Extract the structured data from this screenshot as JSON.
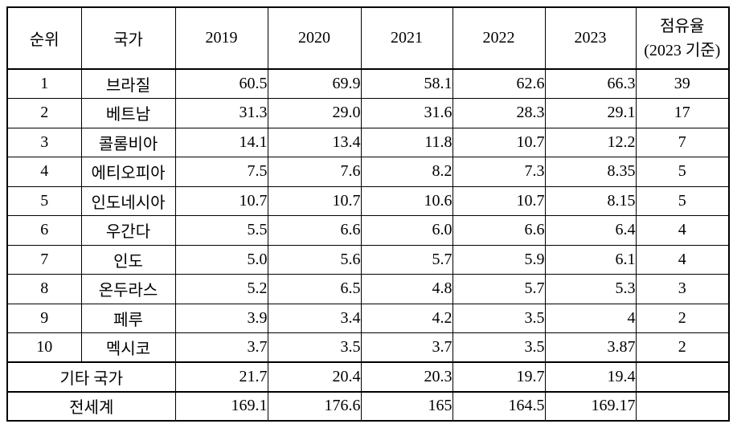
{
  "table": {
    "headers": {
      "rank": "순위",
      "country": "국가",
      "years": [
        "2019",
        "2020",
        "2021",
        "2022",
        "2023"
      ],
      "share_line1": "점유율",
      "share_line2": "(2023 기준)"
    },
    "rows": [
      {
        "rank": "1",
        "country": "브라질",
        "values": [
          "60.5",
          "69.9",
          "58.1",
          "62.6",
          "66.3"
        ],
        "share": "39"
      },
      {
        "rank": "2",
        "country": "베트남",
        "values": [
          "31.3",
          "29.0",
          "31.6",
          "28.3",
          "29.1"
        ],
        "share": "17"
      },
      {
        "rank": "3",
        "country": "콜롬비아",
        "values": [
          "14.1",
          "13.4",
          "11.8",
          "10.7",
          "12.2"
        ],
        "share": "7"
      },
      {
        "rank": "4",
        "country": "에티오피아",
        "values": [
          "7.5",
          "7.6",
          "8.2",
          "7.3",
          "8.35"
        ],
        "share": "5"
      },
      {
        "rank": "5",
        "country": "인도네시아",
        "values": [
          "10.7",
          "10.7",
          "10.6",
          "10.7",
          "8.15"
        ],
        "share": "5"
      },
      {
        "rank": "6",
        "country": "우간다",
        "values": [
          "5.5",
          "6.6",
          "6.0",
          "6.6",
          "6.4"
        ],
        "share": "4"
      },
      {
        "rank": "7",
        "country": "인도",
        "values": [
          "5.0",
          "5.6",
          "5.7",
          "5.9",
          "6.1"
        ],
        "share": "4"
      },
      {
        "rank": "8",
        "country": "온두라스",
        "values": [
          "5.2",
          "6.5",
          "4.8",
          "5.7",
          "5.3"
        ],
        "share": "3"
      },
      {
        "rank": "9",
        "country": "페루",
        "values": [
          "3.9",
          "3.4",
          "4.2",
          "3.5",
          "4"
        ],
        "share": "2"
      },
      {
        "rank": "10",
        "country": "멕시코",
        "values": [
          "3.7",
          "3.5",
          "3.7",
          "3.5",
          "3.87"
        ],
        "share": "2"
      }
    ],
    "summary_rows": [
      {
        "label": "기타 국가",
        "values": [
          "21.7",
          "20.4",
          "20.3",
          "19.7",
          "19.4"
        ],
        "share": ""
      },
      {
        "label": "전세계",
        "values": [
          "169.1",
          "176.6",
          "165",
          "164.5",
          "169.17"
        ],
        "share": ""
      }
    ]
  }
}
